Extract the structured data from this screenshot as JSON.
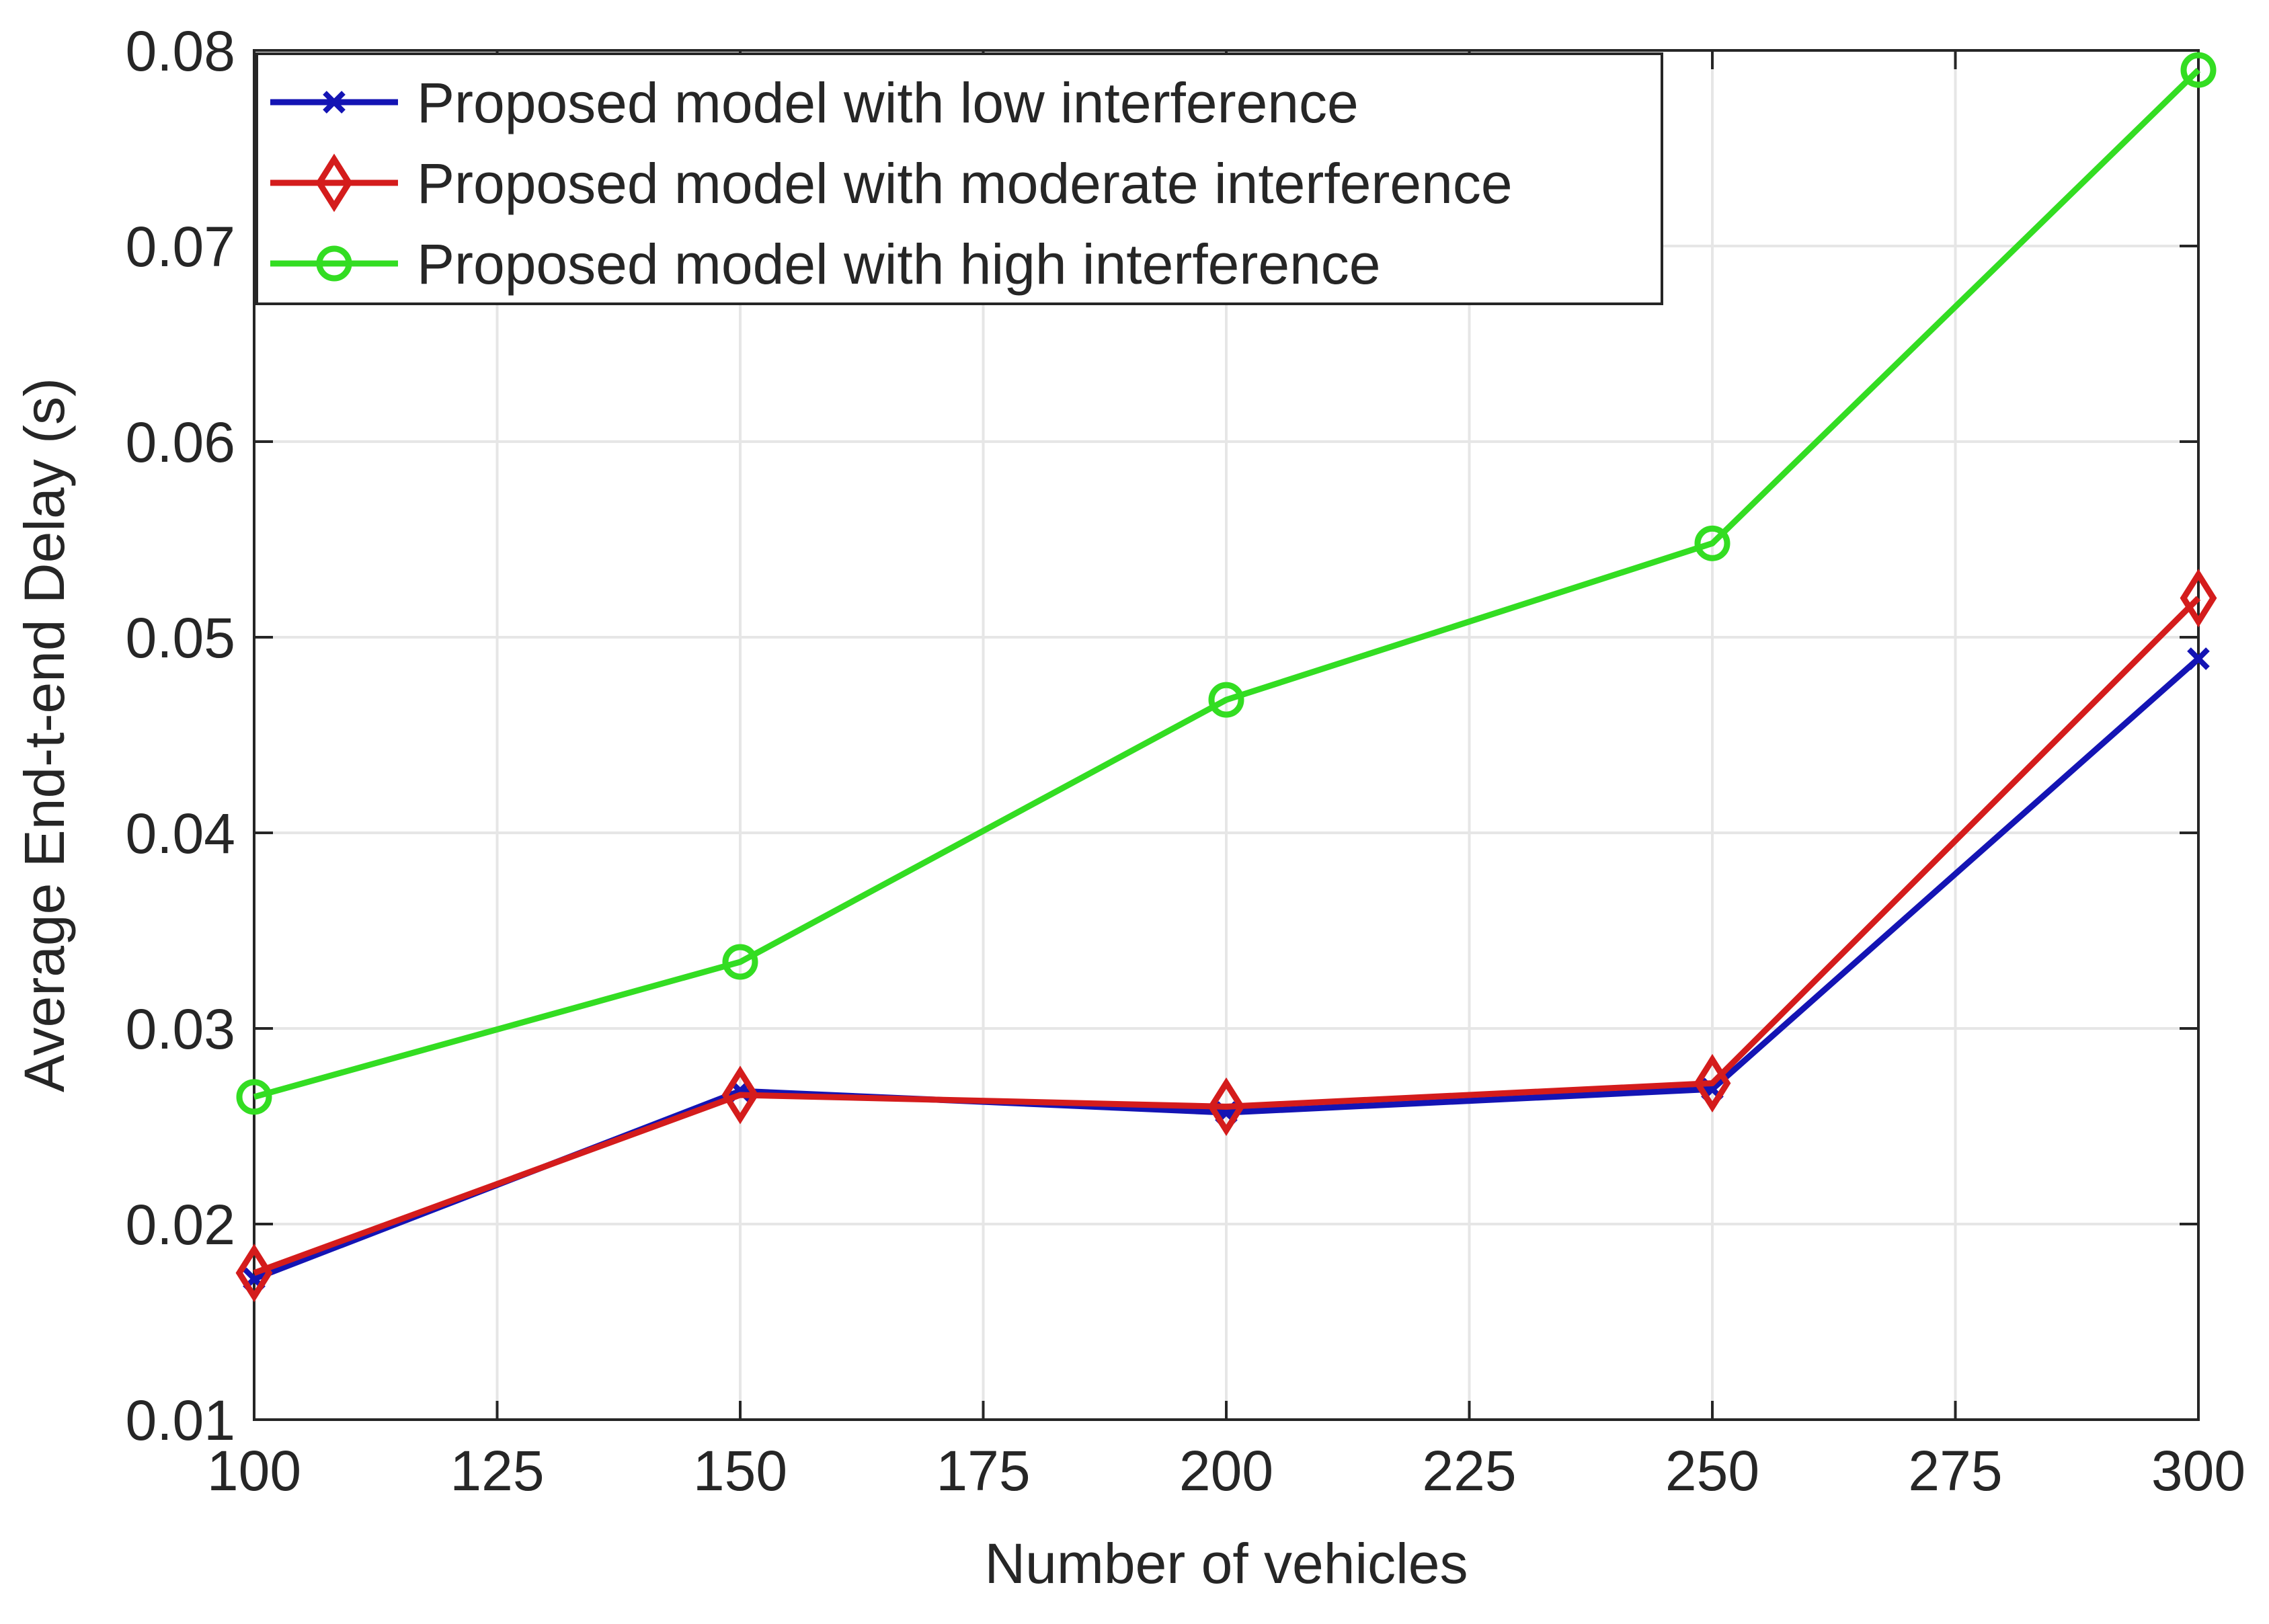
{
  "chart_data": {
    "type": "line",
    "title": "",
    "xlabel": "Number of vehicles",
    "ylabel": "Average End-t-end Delay  (s)",
    "x": [
      100,
      150,
      200,
      250,
      300
    ],
    "xlim": [
      100,
      300
    ],
    "ylim": [
      0.01,
      0.08
    ],
    "xticks": [
      100,
      125,
      150,
      175,
      200,
      225,
      250,
      275,
      300
    ],
    "yticks": [
      0.01,
      0.02,
      0.03,
      0.04,
      0.05,
      0.06,
      0.07,
      0.08
    ],
    "xtick_labels": [
      "100",
      "125",
      "150",
      "175",
      "200",
      "225",
      "250",
      "275",
      "300"
    ],
    "ytick_labels": [
      "0.01",
      "0.02",
      "0.03",
      "0.04",
      "0.05",
      "0.06",
      "0.07",
      "0.08"
    ],
    "grid": true,
    "legend_position": "top-left",
    "series": [
      {
        "name": "Proposed model with low interference",
        "color": "#1414b4",
        "marker": "x",
        "values": [
          0.0172,
          0.0268,
          0.0257,
          0.0269,
          0.0489
        ]
      },
      {
        "name": "Proposed model with moderate interference",
        "color": "#d41c1c",
        "marker": "diamond",
        "values": [
          0.0175,
          0.0266,
          0.026,
          0.0272,
          0.052
        ]
      },
      {
        "name": "Proposed model with high interference",
        "color": "#33dd22",
        "marker": "circle",
        "values": [
          0.0265,
          0.0334,
          0.0468,
          0.0548,
          0.079
        ]
      }
    ]
  }
}
